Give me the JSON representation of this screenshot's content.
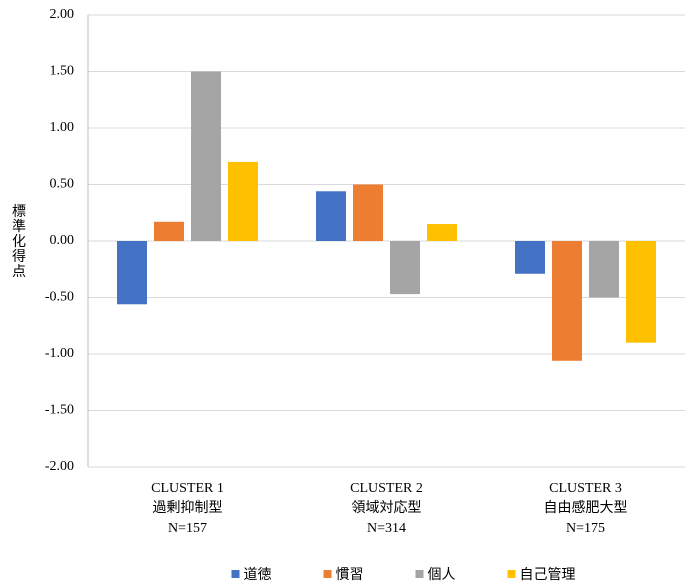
{
  "chart_data": {
    "type": "bar",
    "y_label": "標準化得点",
    "categories": [
      [
        "CLUSTER 1",
        "過剰抑制型",
        "N=157"
      ],
      [
        "CLUSTER 2",
        "領域対応型",
        "N=314"
      ],
      [
        "CLUSTER 3",
        "自由感肥大型",
        "N=175"
      ]
    ],
    "series": [
      {
        "name": "道徳",
        "color": "#4472c4",
        "values": [
          -0.56,
          0.44,
          -0.29
        ]
      },
      {
        "name": "慣習",
        "color": "#ed7d31",
        "values": [
          0.17,
          0.5,
          -1.06
        ]
      },
      {
        "name": "個人",
        "color": "#a5a5a5",
        "values": [
          1.5,
          -0.47,
          -0.5
        ]
      },
      {
        "name": "自己管理",
        "color": "#ffc000",
        "values": [
          0.7,
          0.15,
          -0.9
        ]
      }
    ],
    "ylim": [
      -2,
      2
    ],
    "yticks": [
      {
        "value": -2,
        "label": "-2.00"
      },
      {
        "value": -1.5,
        "label": "-1.50"
      },
      {
        "value": -1,
        "label": "-1.00"
      },
      {
        "value": -0.5,
        "label": "-0.50"
      },
      {
        "value": 0,
        "label": "0.00"
      },
      {
        "value": 0.5,
        "label": "0.50"
      },
      {
        "value": 1,
        "label": "1.00"
      },
      {
        "value": 1.5,
        "label": "1.50"
      },
      {
        "value": 2,
        "label": "2.00"
      }
    ],
    "grid": true
  }
}
